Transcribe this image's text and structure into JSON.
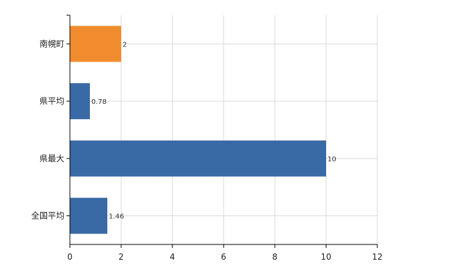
{
  "chart_data": {
    "type": "bar",
    "orientation": "horizontal",
    "categories": [
      "南幌町",
      "県平均",
      "県最大",
      "全国平均"
    ],
    "values": [
      2,
      0.78,
      10,
      1.46
    ],
    "data_labels": [
      "2",
      "0.78",
      "10",
      "1.46"
    ],
    "bar_colors": [
      "#f08c2e",
      "#3a6aa5",
      "#3a6aa5",
      "#3a6aa5"
    ],
    "xlim": [
      0,
      12
    ],
    "x_ticks": [
      0,
      2,
      4,
      6,
      8,
      10,
      12
    ],
    "x_tick_labels": [
      "0",
      "2",
      "4",
      "6",
      "8",
      "10",
      "12"
    ],
    "grid": true,
    "legend": "none"
  }
}
